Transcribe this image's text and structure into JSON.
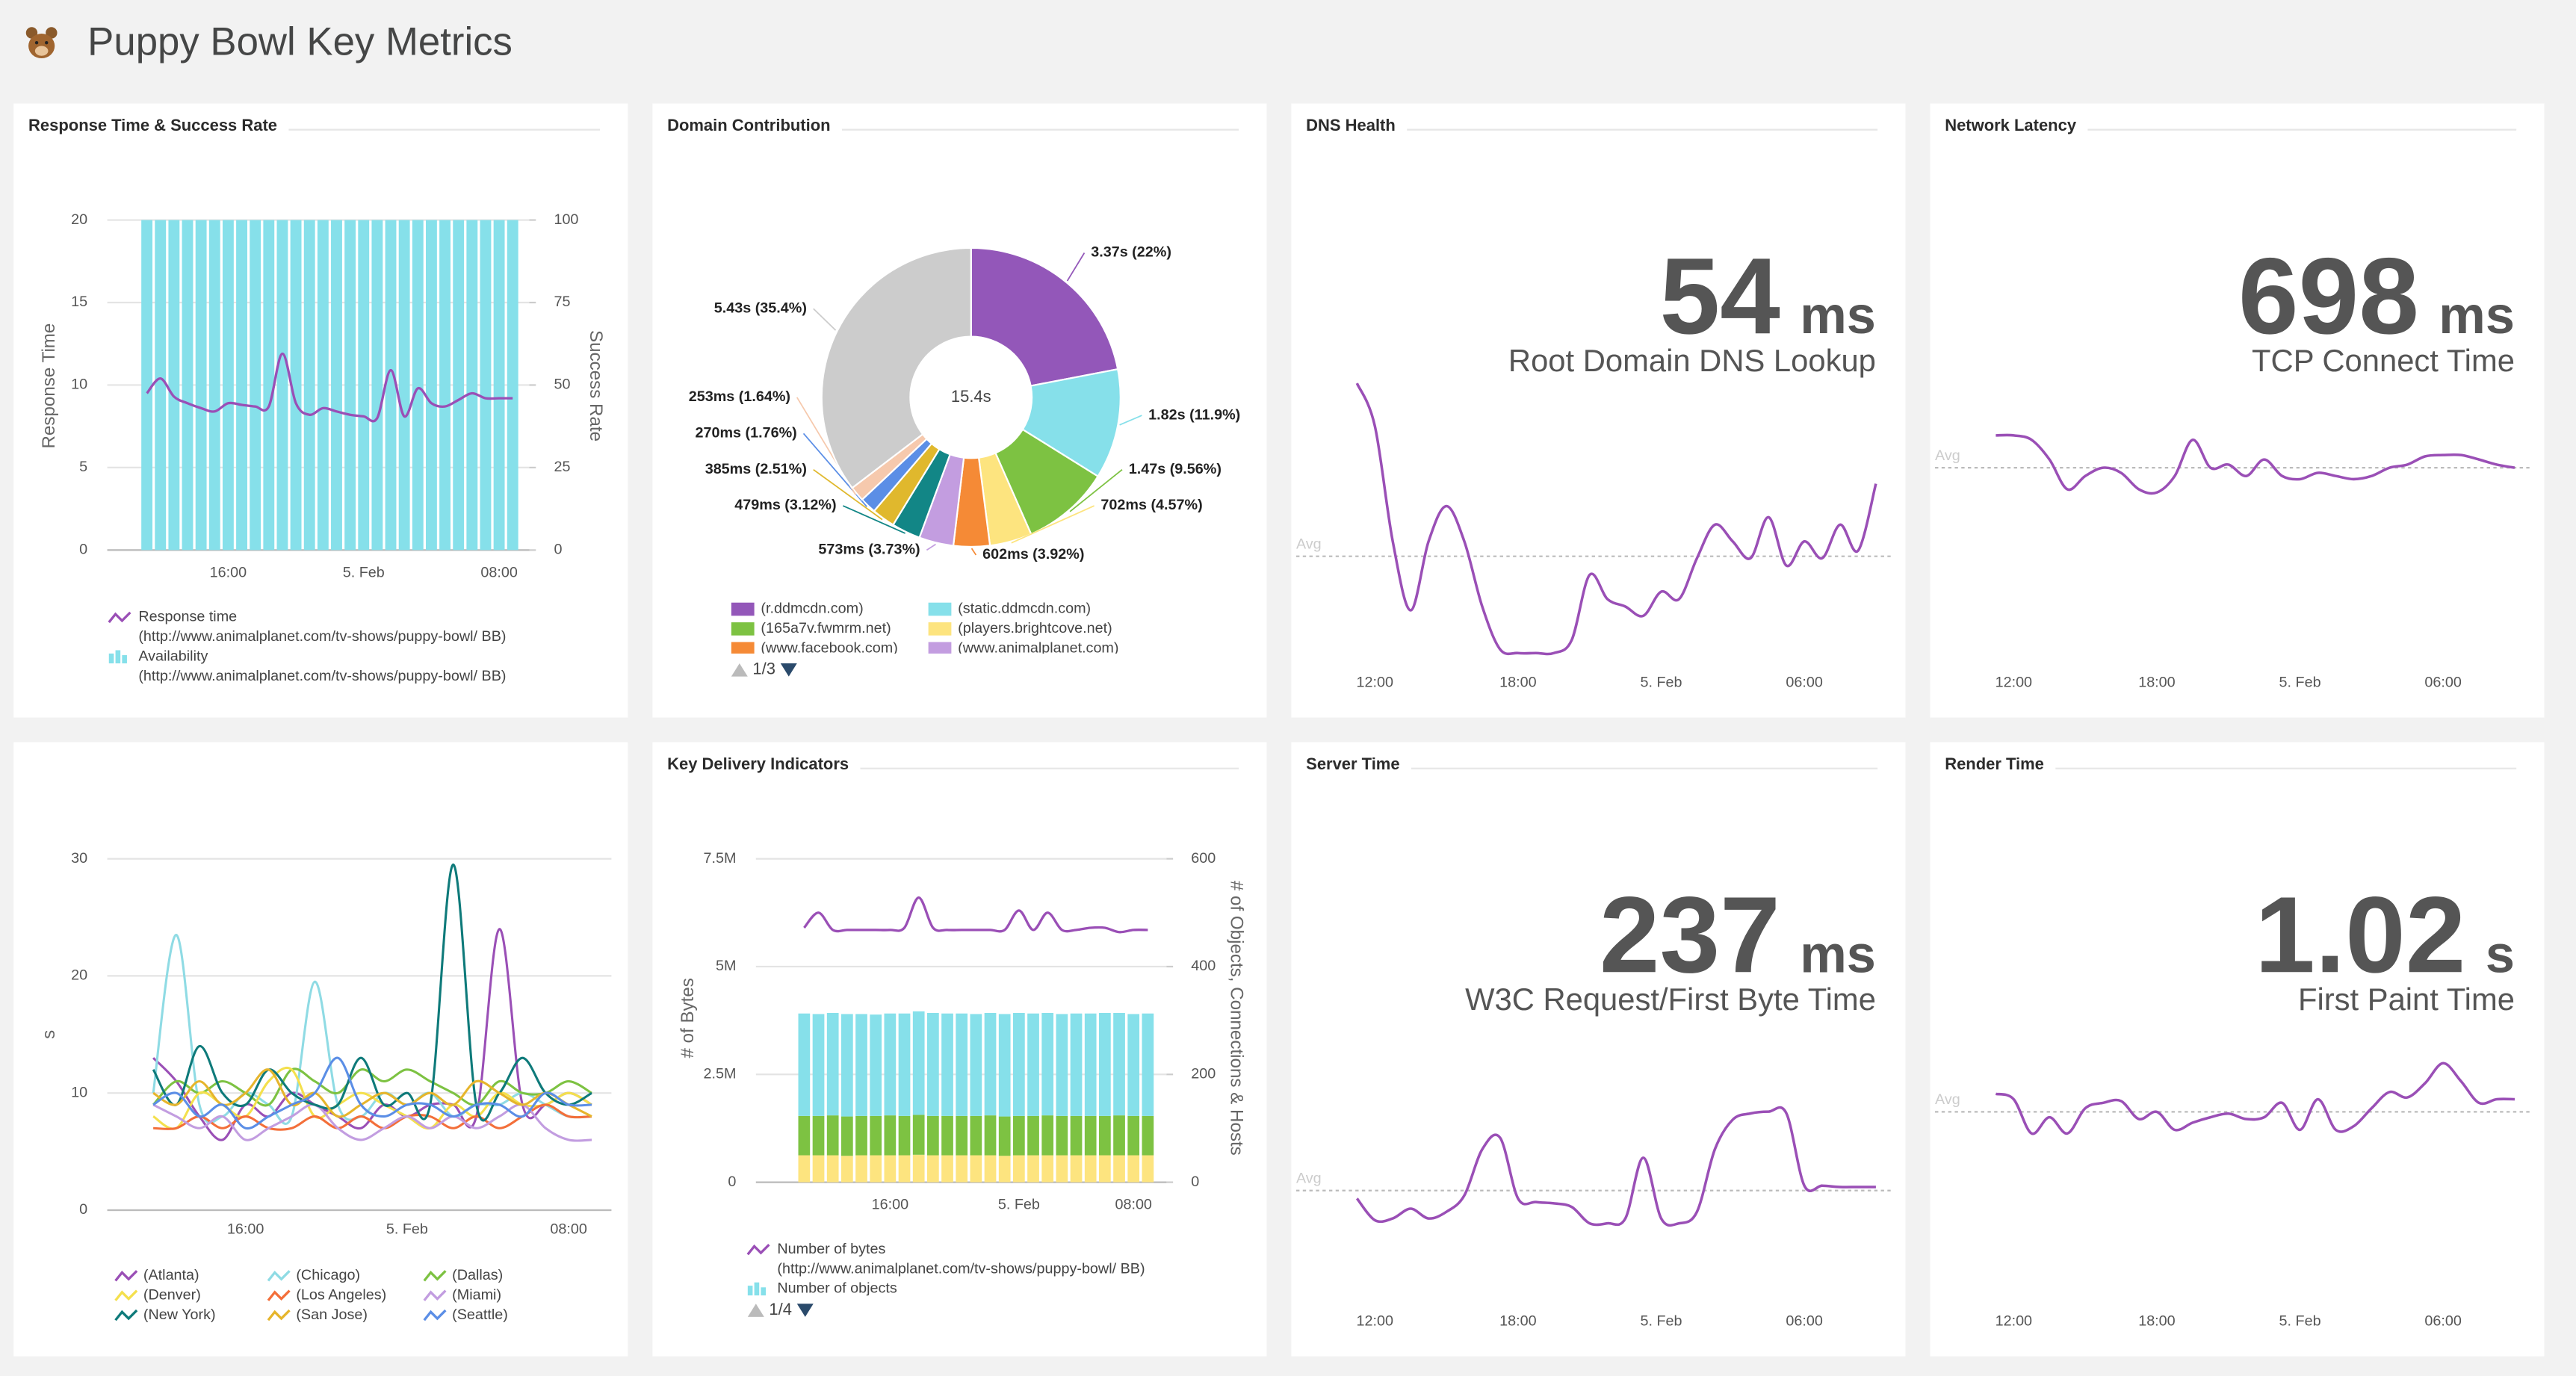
{
  "header": {
    "title": "Puppy Bowl Key Metrics"
  },
  "chart_data": [
    {
      "type": "combo",
      "title": "Response Time & Success Rate",
      "categories": [
        null,
        null,
        null,
        null,
        null,
        null,
        "16:00",
        null,
        null,
        null,
        null,
        null,
        null,
        null,
        null,
        null,
        "5. Feb",
        null,
        null,
        null,
        null,
        null,
        null,
        null,
        null,
        null,
        "08:00",
        null
      ],
      "ylabel": "Response Time",
      "y2label": "Success Rate",
      "ylim": [
        0,
        20
      ],
      "yticks": [
        0,
        5,
        10,
        15,
        20
      ],
      "y2lim": [
        0,
        100
      ],
      "y2ticks": [
        0,
        25,
        50,
        75,
        100
      ],
      "grid": true,
      "series": [
        {
          "name": "Response time",
          "source": "(http://www.animalplanet.com/tv-shows/puppy-bowl/ BB)",
          "kind": "line",
          "axis": "y",
          "color": "#9a4fb6",
          "values": [
            9.5,
            10.4,
            9.3,
            8.9,
            8.6,
            8.4,
            8.9,
            8.8,
            8.7,
            8.7,
            11.9,
            8.9,
            8.2,
            8.6,
            8.4,
            8.2,
            8.1,
            8.0,
            10.9,
            8.1,
            9.8,
            8.9,
            8.7,
            9.1,
            9.5,
            9.2,
            9.2,
            9.2
          ]
        },
        {
          "name": "Availability",
          "source": "(http://www.animalplanet.com/tv-shows/puppy-bowl/ BB)",
          "kind": "bar",
          "axis": "y2",
          "color": "#86e0ea",
          "values": [
            100,
            100,
            100,
            100,
            100,
            100,
            100,
            100,
            100,
            100,
            100,
            100,
            100,
            100,
            100,
            100,
            100,
            100,
            100,
            100,
            100,
            100,
            100,
            100,
            100,
            100,
            100,
            100
          ]
        }
      ]
    },
    {
      "type": "donut",
      "title": "Domain Contribution",
      "center_label": "15.4s",
      "categories": [
        "(r.ddmcdn.com)",
        "(static.ddmcdn.com)",
        "(165a7v.fwmrm.net)",
        "(players.brightcove.net)",
        "(www.facebook.com)",
        "(www.animalplanet.com)",
        null,
        null,
        null,
        null,
        null
      ],
      "values": [
        22,
        11.9,
        9.56,
        4.57,
        3.92,
        3.73,
        3.12,
        2.51,
        1.76,
        1.64,
        35.4
      ],
      "value_labels": [
        "3.37s (22%)",
        "1.82s (11.9%)",
        "1.47s (9.56%)",
        "702ms (4.57%)",
        "602ms (3.92%)",
        "573ms (3.73%)",
        "479ms (3.12%)",
        "385ms (2.51%)",
        "270ms (1.76%)",
        "253ms (1.64%)",
        "5.43s (35.4%)"
      ],
      "colors": [
        "#9357b9",
        "#86e0ea",
        "#7dc242",
        "#fde47f",
        "#f58a36",
        "#c39de0",
        "#128686",
        "#e0b82d",
        "#5b8ee6",
        "#f6c9ad",
        "#cccccc"
      ],
      "legend_page": "1/3"
    },
    {
      "type": "kpi",
      "title": "DNS Health",
      "value": 54,
      "unit": "ms",
      "subtitle": "Root Domain DNS Lookup",
      "avg_label": "Avg",
      "color": "#9a4fb6",
      "categories": [
        null,
        "12:00",
        null,
        null,
        null,
        null,
        null,
        null,
        null,
        "18:00",
        null,
        null,
        null,
        null,
        null,
        null,
        null,
        "5. Feb",
        null,
        null,
        null,
        null,
        null,
        null,
        null,
        "06:00",
        null,
        null,
        null,
        null
      ],
      "ylim": [
        0,
        150
      ],
      "values": [
        147,
        124,
        62,
        25,
        62,
        81,
        62,
        27,
        4,
        2,
        2,
        2,
        9,
        44,
        31,
        27,
        22,
        35,
        31,
        53,
        71,
        62,
        53,
        75,
        49,
        62,
        53,
        71,
        57,
        93
      ]
    },
    {
      "type": "kpi",
      "title": "Network Latency",
      "value": 698,
      "unit": "ms",
      "subtitle": "TCP Connect Time",
      "avg_label": "Avg",
      "color": "#9a4fb6",
      "categories": [
        null,
        "12:00",
        null,
        null,
        null,
        null,
        null,
        null,
        null,
        "18:00",
        null,
        null,
        null,
        null,
        null,
        null,
        null,
        "5. Feb",
        null,
        null,
        null,
        null,
        null,
        null,
        null,
        "06:00",
        null,
        null,
        null,
        null
      ],
      "ylim": [
        400,
        840
      ],
      "values": [
        749,
        749,
        742,
        711,
        664,
        685,
        698,
        690,
        664,
        659,
        685,
        742,
        698,
        703,
        685,
        711,
        685,
        680,
        690,
        685,
        680,
        685,
        698,
        703,
        716,
        718,
        718,
        711,
        703,
        698
      ]
    },
    {
      "type": "line",
      "categories": [
        null,
        null,
        null,
        null,
        "16:00",
        null,
        null,
        null,
        null,
        null,
        null,
        "5. Feb",
        null,
        null,
        null,
        null,
        null,
        null,
        "08:00",
        null
      ],
      "ylabel": "s",
      "ylim": [
        0,
        30
      ],
      "yticks": [
        0,
        10,
        20,
        30
      ],
      "grid": true,
      "series": [
        {
          "name": "(Atlanta)",
          "color": "#9a4fb6",
          "values": [
            13,
            11,
            8,
            6,
            9,
            8,
            10,
            9,
            8,
            7,
            9,
            8,
            9,
            9,
            8,
            24,
            9,
            9,
            10,
            9
          ]
        },
        {
          "name": "(Chicago)",
          "color": "#8fdbe4",
          "values": [
            10,
            23.5,
            9,
            8,
            10,
            9,
            8,
            19.5,
            9,
            8,
            10,
            9,
            10,
            8,
            9,
            9,
            10,
            9,
            8,
            8
          ]
        },
        {
          "name": "(Dallas)",
          "color": "#7dc242",
          "values": [
            9,
            11,
            10,
            11,
            10,
            9,
            12,
            11,
            10,
            12,
            11,
            12,
            11,
            10,
            9,
            11,
            10,
            10,
            11,
            10
          ]
        },
        {
          "name": "(Denver)",
          "color": "#f4e04d",
          "values": [
            8,
            7,
            10,
            9,
            8,
            11,
            12,
            8,
            9,
            10,
            9,
            8,
            7,
            9,
            8,
            10,
            9,
            9,
            10,
            9
          ]
        },
        {
          "name": "(Los Angeles)",
          "color": "#f36f3a",
          "values": [
            7,
            7,
            8,
            7,
            8,
            7,
            7,
            8,
            7,
            8,
            7,
            8,
            8,
            7,
            8,
            7,
            8,
            9,
            8,
            8
          ]
        },
        {
          "name": "(Miami)",
          "color": "#c29de0",
          "values": [
            9,
            8,
            7,
            8,
            6,
            7,
            8,
            9,
            7,
            6,
            7,
            8,
            7,
            8,
            7,
            8,
            9,
            7,
            6,
            6
          ]
        },
        {
          "name": "(New York)",
          "color": "#0e7a7a",
          "values": [
            12,
            9,
            14,
            10,
            9,
            12,
            10,
            9,
            9,
            13,
            9,
            10,
            9,
            29.5,
            9,
            10,
            13,
            10,
            9,
            10
          ]
        },
        {
          "name": "(San Jose)",
          "color": "#e6b52c",
          "values": [
            10,
            9,
            11,
            9,
            10,
            12,
            9,
            10,
            8,
            9,
            10,
            9,
            10,
            9,
            11,
            10,
            9,
            10,
            9,
            8
          ]
        },
        {
          "name": "(Seattle)",
          "color": "#5b8ee6",
          "values": [
            9,
            10,
            8,
            9,
            7,
            8,
            9,
            10,
            13,
            9,
            8,
            9,
            9,
            8,
            9,
            9,
            8,
            10,
            9,
            9
          ]
        }
      ]
    },
    {
      "type": "combo",
      "title": "Key Delivery Indicators",
      "categories": [
        null,
        null,
        null,
        null,
        null,
        null,
        "16:00",
        null,
        null,
        null,
        null,
        null,
        null,
        null,
        null,
        "5. Feb",
        null,
        null,
        null,
        null,
        null,
        null,
        null,
        "08:00",
        null
      ],
      "ylabel": "# of Bytes",
      "y2label": "# of Objects, Connections & Hosts",
      "ylim": [
        0,
        7500000
      ],
      "yticks": [
        0,
        {
          "value": 2500000,
          "label": "2.5M"
        },
        {
          "value": 5000000,
          "label": "5M"
        },
        {
          "value": 7500000,
          "label": "7.5M"
        }
      ],
      "y2lim": [
        0,
        600
      ],
      "y2ticks": [
        0,
        200,
        400,
        600
      ],
      "grid": true,
      "legend_page": "1/4",
      "series": [
        {
          "name": "Number of bytes",
          "source": "(http://www.animalplanet.com/tv-shows/puppy-bowl/ BB)",
          "kind": "line",
          "axis": "y",
          "color": "#9a4fb6",
          "values": [
            5900000,
            6250000,
            5850000,
            5850000,
            5850000,
            5850000,
            5850000,
            5900000,
            6600000,
            5900000,
            5850000,
            5850000,
            5850000,
            5850000,
            5850000,
            6300000,
            5850000,
            6250000,
            5850000,
            5850000,
            5900000,
            5900000,
            5800000,
            5850000,
            5850000
          ]
        },
        {
          "name": "Number of objects",
          "kind": "bar",
          "axis": "y2",
          "color": "#86e0ea",
          "values": [
            190,
            189,
            190,
            190,
            189,
            188,
            189,
            190,
            192,
            191,
            190,
            190,
            189,
            190,
            190,
            191,
            190,
            190,
            189,
            190,
            190,
            191,
            190,
            189,
            190
          ]
        },
        {
          "name": null,
          "kind": "bar",
          "axis": "y2",
          "color": "#7dc242",
          "values": [
            73,
            73,
            74,
            73,
            73,
            73,
            74,
            73,
            74,
            73,
            73,
            73,
            73,
            74,
            73,
            73,
            73,
            74,
            73,
            73,
            73,
            73,
            74,
            73,
            73
          ]
        },
        {
          "name": null,
          "kind": "bar",
          "axis": "y2",
          "color": "#fde47f",
          "values": [
            50,
            50,
            50,
            49,
            50,
            50,
            50,
            50,
            51,
            50,
            50,
            50,
            50,
            50,
            49,
            50,
            50,
            50,
            50,
            50,
            50,
            50,
            50,
            50,
            50
          ]
        }
      ]
    },
    {
      "type": "kpi",
      "title": "Server Time",
      "value": 237,
      "unit": "ms",
      "subtitle": "W3C Request/First Byte Time",
      "avg_label": "Avg",
      "color": "#9a4fb6",
      "categories": [
        null,
        "12:00",
        null,
        null,
        null,
        null,
        null,
        null,
        null,
        "18:00",
        null,
        null,
        null,
        null,
        null,
        null,
        null,
        "5. Feb",
        null,
        null,
        null,
        null,
        null,
        null,
        null,
        "06:00",
        null,
        null,
        null,
        null
      ],
      "ylim": [
        0,
        630
      ],
      "values": [
        219,
        170,
        174,
        196,
        174,
        189,
        226,
        330,
        356,
        219,
        211,
        208,
        200,
        163,
        163,
        174,
        311,
        174,
        163,
        189,
        330,
        397,
        411,
        415,
        411,
        248,
        248,
        245,
        245,
        245
      ]
    },
    {
      "type": "kpi",
      "title": "Render Time",
      "value": 1.02,
      "unit": "s",
      "subtitle": "First Paint Time",
      "avg_label": "Avg",
      "color": "#9a4fb6",
      "categories": [
        null,
        "12:00",
        null,
        null,
        null,
        null,
        null,
        null,
        null,
        "18:00",
        null,
        null,
        null,
        null,
        null,
        null,
        null,
        "5. Feb",
        null,
        null,
        null,
        null,
        null,
        null,
        null,
        "06:00",
        null,
        null,
        null,
        null
      ],
      "ylim": [
        0,
        1.55
      ],
      "values": [
        1.12,
        1.09,
        0.9,
        0.99,
        0.9,
        1.04,
        1.07,
        1.08,
        0.98,
        1.02,
        0.92,
        0.96,
        0.99,
        1.01,
        0.98,
        0.99,
        1.07,
        0.92,
        1.09,
        0.92,
        0.94,
        1.04,
        1.13,
        1.1,
        1.18,
        1.29,
        1.19,
        1.07,
        1.09,
        1.09
      ]
    }
  ]
}
